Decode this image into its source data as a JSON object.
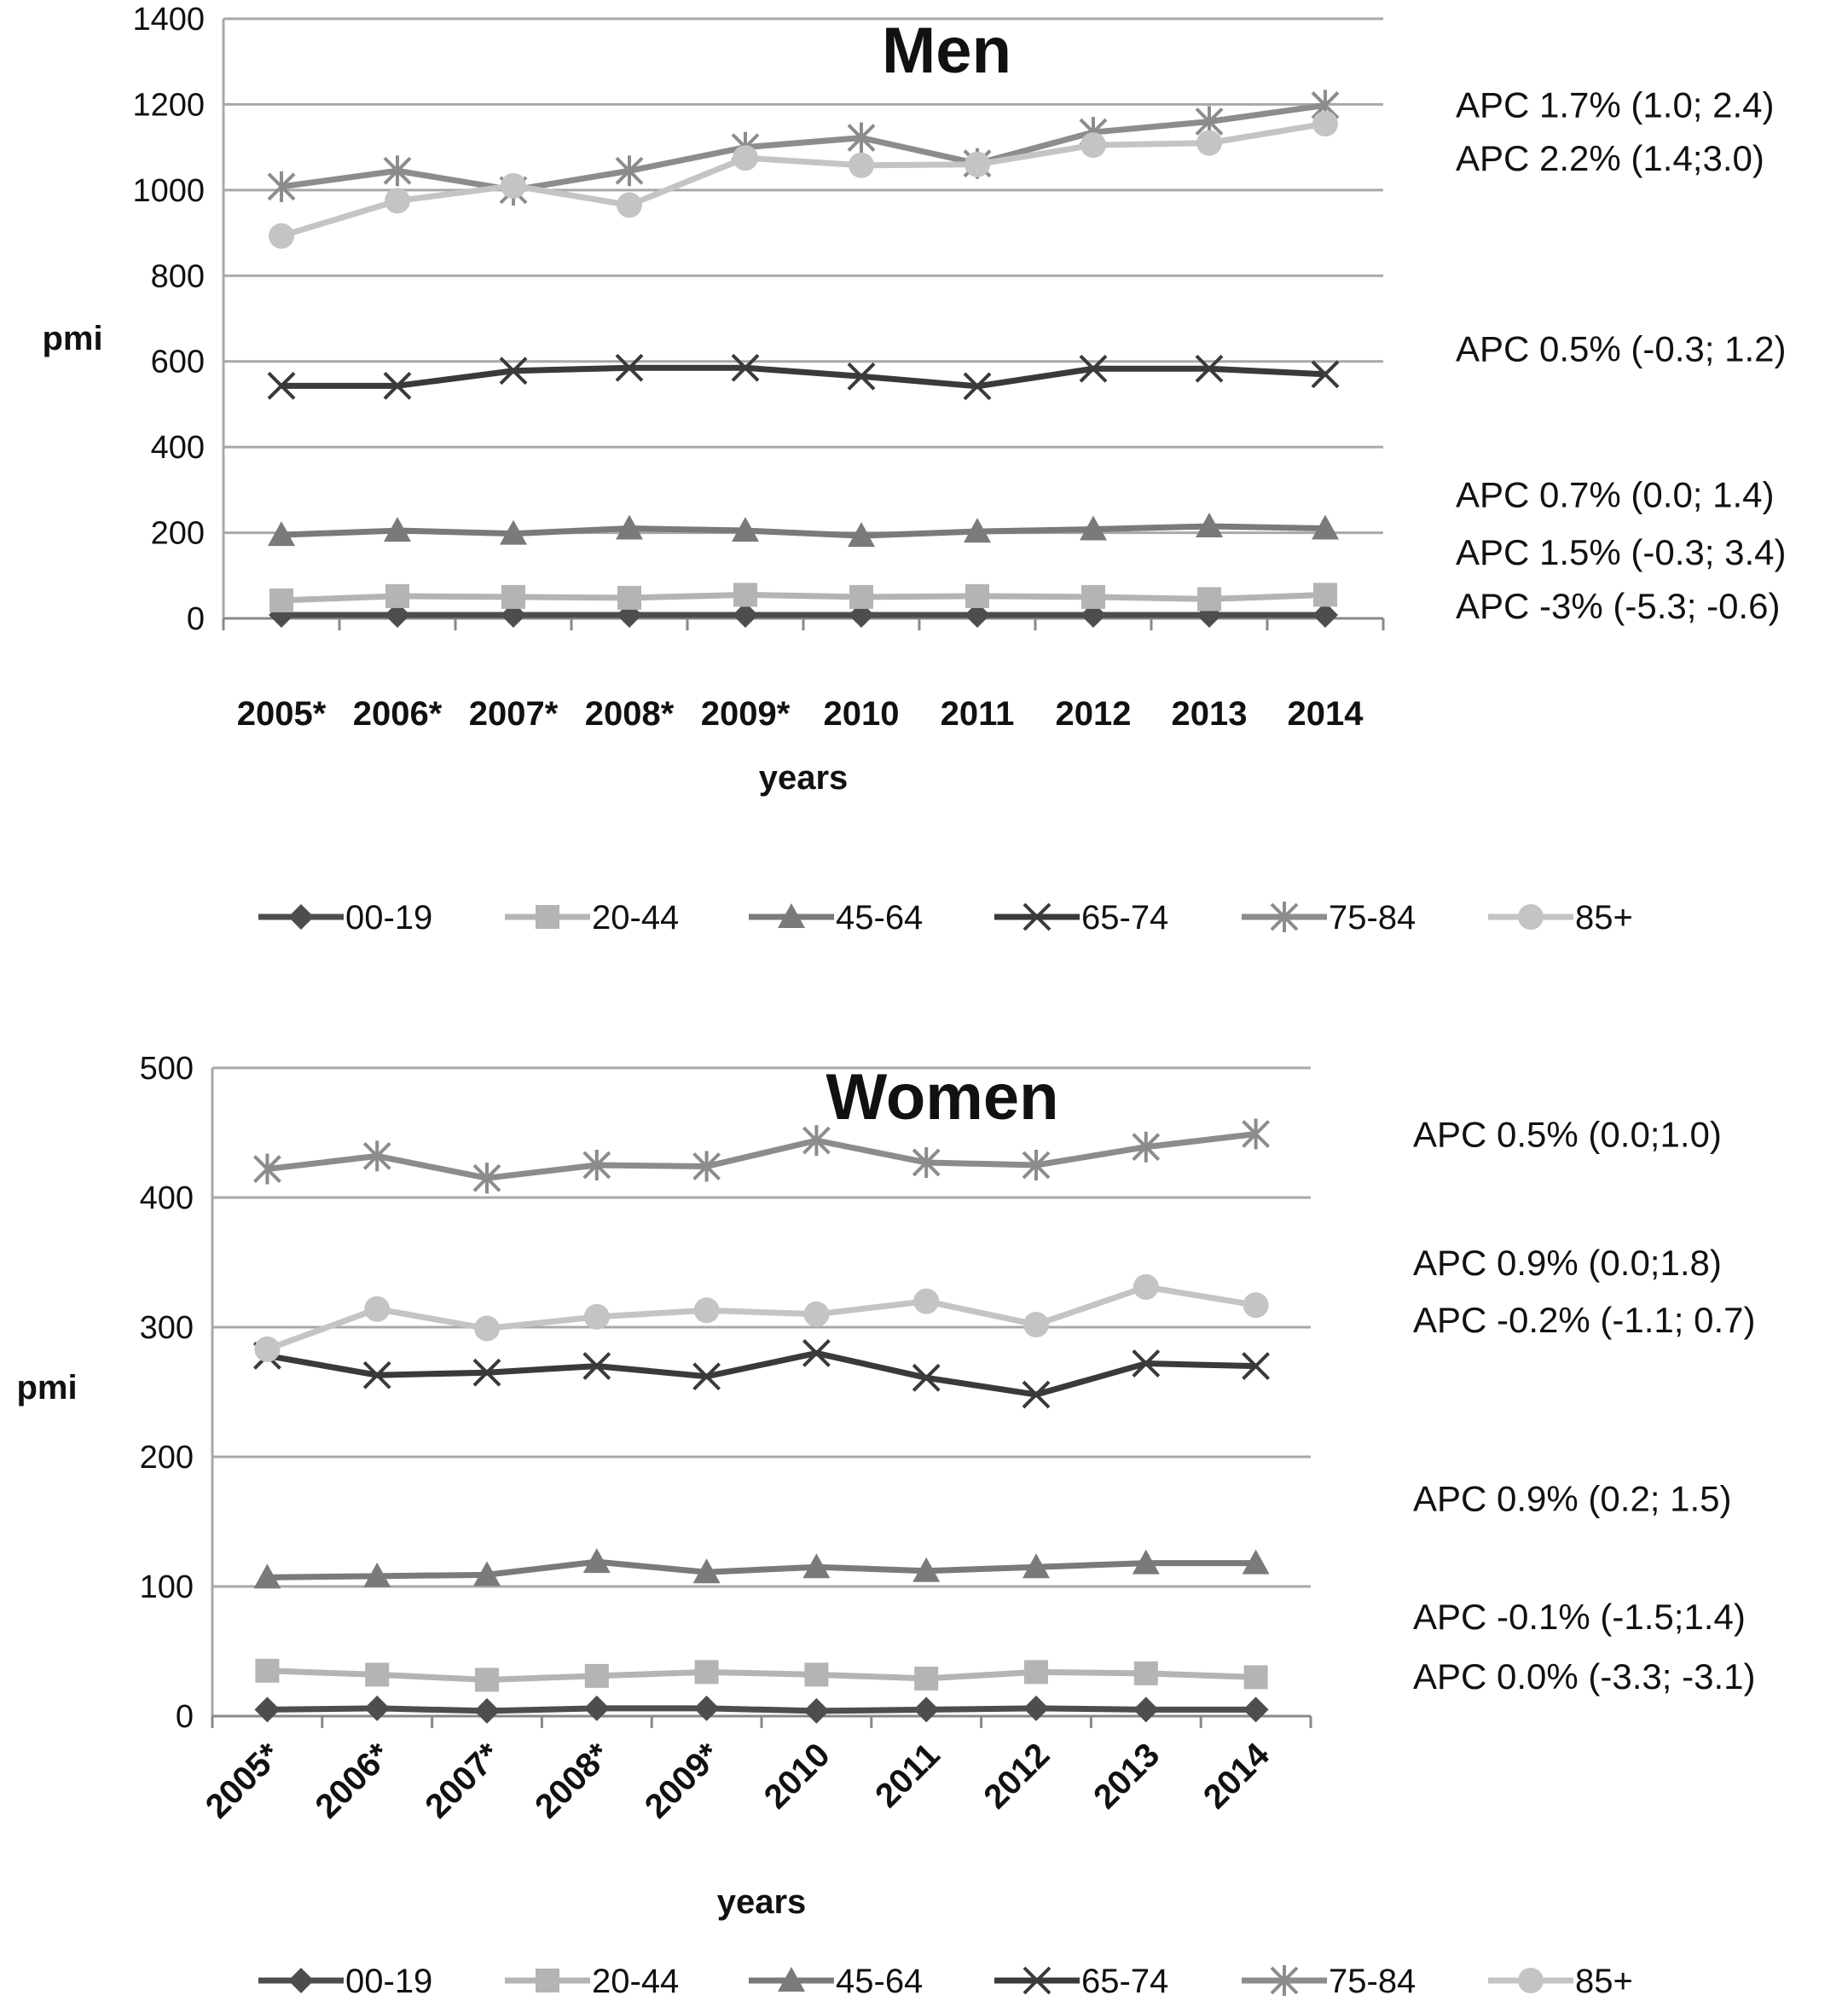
{
  "colors": {
    "00-19": "#4d4d4d",
    "20-44": "#b4b4b4",
    "45-64": "#7a7a7a",
    "65-74": "#3a3a3a",
    "75-84": "#8c8c8c",
    "85+": "#c4c4c4",
    "grid": "#a8a8a8",
    "text": "#111111"
  },
  "chart_data": [
    {
      "type": "line",
      "title": "Men",
      "xlabel": "years",
      "ylabel": "pmi",
      "ylim": [
        0,
        1400
      ],
      "yticks": [
        0,
        200,
        400,
        600,
        800,
        1000,
        1200,
        1400
      ],
      "grid": true,
      "legend": "bottom",
      "categories": [
        "2005*",
        "2006*",
        "2007*",
        "2008*",
        "2009*",
        "2010",
        "2011",
        "2012",
        "2013",
        "2014"
      ],
      "series": [
        {
          "name": "00-19",
          "marker": "diamond",
          "values": [
            8,
            8,
            8,
            8,
            8,
            8,
            8,
            8,
            8,
            8
          ]
        },
        {
          "name": "20-44",
          "marker": "square",
          "values": [
            42,
            52,
            50,
            48,
            55,
            50,
            52,
            50,
            45,
            55
          ]
        },
        {
          "name": "45-64",
          "marker": "triangle",
          "values": [
            195,
            205,
            198,
            210,
            205,
            193,
            203,
            208,
            215,
            210
          ]
        },
        {
          "name": "65-74",
          "marker": "x",
          "values": [
            543,
            543,
            578,
            585,
            585,
            565,
            542,
            583,
            583,
            570
          ]
        },
        {
          "name": "75-84",
          "marker": "star",
          "values": [
            1008,
            1045,
            1000,
            1045,
            1100,
            1122,
            1062,
            1135,
            1160,
            1198
          ]
        },
        {
          "name": "85+",
          "marker": "circle",
          "values": [
            893,
            975,
            1010,
            965,
            1075,
            1058,
            1060,
            1105,
            1110,
            1155
          ]
        }
      ],
      "annotations": [
        {
          "text": "APC 1.7% (1.0; 2.4)",
          "y": 1200
        },
        {
          "text": "APC 2.2% (1.4;3.0)",
          "y": 1075
        },
        {
          "text": "APC 0.5% (-0.3; 1.2)",
          "y": 630
        },
        {
          "text": "APC 0.7% (0.0; 1.4)",
          "y": 290
        },
        {
          "text": "APC 1.5% (-0.3; 3.4)",
          "y": 155
        },
        {
          "text": "APC -3% (-5.3; -0.6)",
          "y": 30
        }
      ]
    },
    {
      "type": "line",
      "title": "Women",
      "xlabel": "years",
      "ylabel": "pmi",
      "ylim": [
        0,
        500
      ],
      "yticks": [
        0,
        100,
        200,
        300,
        400,
        500
      ],
      "grid": true,
      "legend": "bottom",
      "categories": [
        "2005*",
        "2006*",
        "2007*",
        "2008*",
        "2009*",
        "2010",
        "2011",
        "2012",
        "2013",
        "2014"
      ],
      "series": [
        {
          "name": "00-19",
          "marker": "diamond",
          "values": [
            5,
            6,
            4,
            6,
            6,
            4,
            5,
            6,
            5,
            5
          ]
        },
        {
          "name": "20-44",
          "marker": "square",
          "values": [
            35,
            32,
            28,
            31,
            34,
            32,
            29,
            34,
            33,
            30
          ]
        },
        {
          "name": "45-64",
          "marker": "triangle",
          "values": [
            107,
            108,
            109,
            119,
            111,
            115,
            112,
            115,
            118,
            118
          ]
        },
        {
          "name": "65-74",
          "marker": "x",
          "values": [
            278,
            263,
            265,
            270,
            262,
            280,
            261,
            248,
            272,
            270
          ]
        },
        {
          "name": "75-84",
          "marker": "star",
          "values": [
            422,
            432,
            415,
            425,
            424,
            444,
            427,
            425,
            439,
            449
          ]
        },
        {
          "name": "85+",
          "marker": "circle",
          "values": [
            283,
            314,
            299,
            308,
            313,
            310,
            320,
            302,
            331,
            317
          ]
        }
      ],
      "annotations": [
        {
          "text": "APC 0.5% (0.0;1.0)",
          "y": 449
        },
        {
          "text": "APC 0.9% (0.0;1.8)",
          "y": 350
        },
        {
          "text": "APC -0.2% (-1.1; 0.7)",
          "y": 306
        },
        {
          "text": "APC 0.9% (0.2; 1.5)",
          "y": 168
        },
        {
          "text": "APC -0.1% (-1.5;1.4)",
          "y": 77
        },
        {
          "text": "APC 0.0% (-3.3; -3.1)",
          "y": 31
        }
      ]
    }
  ]
}
